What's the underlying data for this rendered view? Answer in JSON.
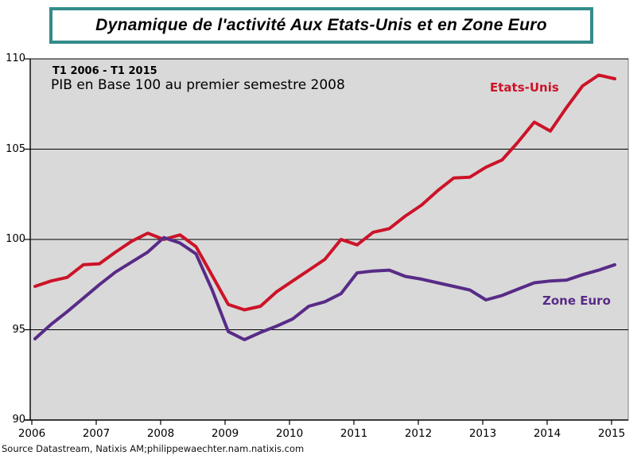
{
  "title": "Dynamique de l'activité Aux Etats-Unis et en Zone Euro",
  "annotations": {
    "period": "T1 2006 - T1 2015",
    "subtitle": "PIB en Base 100 au premier semestre 2008"
  },
  "source": "Source Datastream, Natixis AM;philippewaechter.nam.natixis.com",
  "colors": {
    "us_line": "#cc1328",
    "euro_line": "#582b87",
    "plot_bg": "#d9d9d9",
    "title_border": "#348b8b",
    "gridline": "#000000"
  },
  "chart_data": {
    "type": "line",
    "title": "Dynamique de l'activité Aux Etats-Unis et en Zone Euro",
    "subtitle": "PIB en Base 100 au premier semestre 2008",
    "period": "T1 2006 - T1 2015",
    "x_unit": "quarter",
    "x_range": [
      "T1 2006",
      "T1 2015"
    ],
    "x_tick_labels": [
      "2006",
      "2007",
      "2008",
      "2009",
      "2010",
      "2011",
      "2012",
      "2013",
      "2014",
      "2015"
    ],
    "y_tick_labels": [
      "90",
      "95",
      "100",
      "105",
      "110"
    ],
    "y_ticks": [
      90,
      95,
      100,
      105,
      110
    ],
    "ylim": [
      90,
      110
    ],
    "grid": "horizontal",
    "legend_position": "inline-labels",
    "series": [
      {
        "name": "Etats-Unis",
        "color": "#cc1328",
        "values": [
          97.4,
          97.7,
          97.9,
          98.6,
          98.65,
          99.3,
          99.9,
          100.35,
          100.0,
          100.25,
          99.6,
          98.0,
          96.4,
          96.1,
          96.3,
          97.1,
          97.7,
          98.3,
          98.9,
          100.0,
          99.7,
          100.4,
          100.6,
          101.3,
          101.9,
          102.7,
          103.4,
          103.45,
          104.0,
          104.4,
          105.4,
          106.5,
          106.0,
          107.3,
          108.5,
          109.1,
          108.9
        ]
      },
      {
        "name": "Zone Euro",
        "color": "#582b87",
        "values": [
          94.5,
          95.3,
          96.0,
          96.75,
          97.5,
          98.2,
          98.75,
          99.3,
          100.1,
          99.8,
          99.2,
          97.2,
          94.9,
          94.45,
          94.85,
          95.2,
          95.6,
          96.3,
          96.55,
          97.0,
          98.15,
          98.25,
          98.3,
          97.95,
          97.8,
          97.6,
          97.4,
          97.2,
          96.65,
          96.9,
          97.25,
          97.6,
          97.7,
          97.75,
          98.05,
          98.3,
          98.6
        ]
      }
    ]
  }
}
